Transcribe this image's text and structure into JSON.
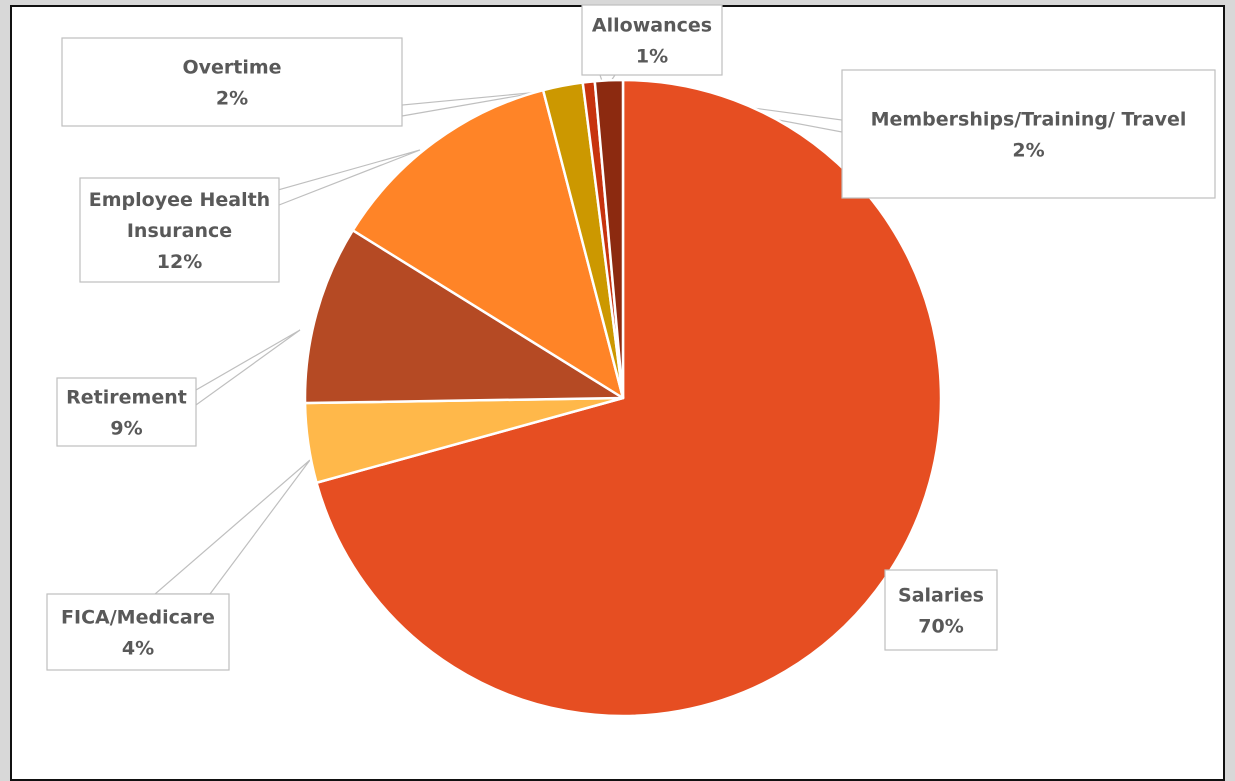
{
  "chart_data": {
    "type": "pie",
    "title": "",
    "start_angle_deg": 0,
    "direction": "clockwise",
    "slices": [
      {
        "label": "Salaries",
        "percent_label": "70%",
        "value": 70,
        "color": "#E64E22"
      },
      {
        "label": "FICA/Medicare",
        "percent_label": "4%",
        "value": 4,
        "color": "#FFB84A"
      },
      {
        "label": "Retirement",
        "percent_label": "9%",
        "value": 9,
        "color": "#B54A24"
      },
      {
        "label": "Employee Health",
        "label_line2": "Insurance",
        "percent_label": "12%",
        "value": 12,
        "color": "#FF8427"
      },
      {
        "label": "Overtime",
        "percent_label": "2%",
        "value": 2,
        "color": "#CC9800"
      },
      {
        "label": "Allowances",
        "percent_label": "1%",
        "value": 0.6,
        "color": "#C7330E"
      },
      {
        "label": "Memberships/Training/ Travel",
        "percent_label": "2%",
        "value": 1.4,
        "color": "#8C2A10"
      }
    ]
  }
}
